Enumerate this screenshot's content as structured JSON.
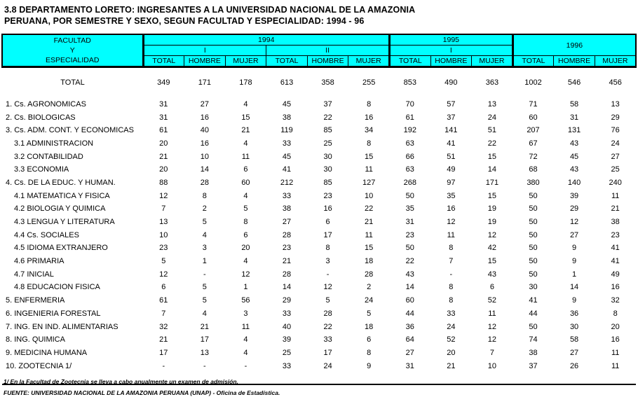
{
  "title": {
    "line1": "3.8  DEPARTAMENTO  LORETO: INGRESANTES A LA UNIVERSIDAD NACIONAL DE LA AMAZONIA",
    "line2": "PERUANA,  POR SEMESTRE Y SEXO, SEGUN FACULTAD Y ESPECIALIDAD: 1994 - 96"
  },
  "colors": {
    "header_bg": "#00FFFF",
    "border": "#000000",
    "text": "#000000"
  },
  "table": {
    "header": {
      "stub": [
        "FACULTAD",
        "Y",
        "ESPECIALIDAD"
      ],
      "year_groups": [
        {
          "year": "1994",
          "semesters": [
            "I",
            "II"
          ]
        },
        {
          "year": "1995",
          "semesters": [
            "I"
          ]
        },
        {
          "year": "1996",
          "semesters": [
            ""
          ]
        }
      ],
      "columns": [
        "TOTAL",
        "HOMBRE",
        "MUJER",
        "TOTAL",
        "HOMBRE",
        "MUJER",
        "TOTAL",
        "HOMBRE",
        "MUJER",
        "TOTAL",
        "HOMBRE",
        "MUJER"
      ]
    },
    "rows": [
      {
        "label": "TOTAL",
        "indent": "total",
        "values": [
          "349",
          "171",
          "178",
          "613",
          "358",
          "255",
          "853",
          "490",
          "363",
          "1002",
          "546",
          "456"
        ]
      },
      {
        "label": "1. Cs. AGRONOMICAS",
        "indent": "main",
        "values": [
          "31",
          "27",
          "4",
          "45",
          "37",
          "8",
          "70",
          "57",
          "13",
          "71",
          "58",
          "13"
        ]
      },
      {
        "label": "2. Cs. BIOLOGICAS",
        "indent": "main",
        "values": [
          "31",
          "16",
          "15",
          "38",
          "22",
          "16",
          "61",
          "37",
          "24",
          "60",
          "31",
          "29"
        ]
      },
      {
        "label": "3. Cs. ADM. CONT. Y ECONOMICAS",
        "indent": "main",
        "values": [
          "61",
          "40",
          "21",
          "119",
          "85",
          "34",
          "192",
          "141",
          "51",
          "207",
          "131",
          "76"
        ]
      },
      {
        "label": "3.1 ADMINISTRACION",
        "indent": "sub",
        "values": [
          "20",
          "16",
          "4",
          "33",
          "25",
          "8",
          "63",
          "41",
          "22",
          "67",
          "43",
          "24"
        ]
      },
      {
        "label": "3.2 CONTABILIDAD",
        "indent": "sub",
        "values": [
          "21",
          "10",
          "11",
          "45",
          "30",
          "15",
          "66",
          "51",
          "15",
          "72",
          "45",
          "27"
        ]
      },
      {
        "label": "3.3 ECONOMIA",
        "indent": "sub",
        "values": [
          "20",
          "14",
          "6",
          "41",
          "30",
          "11",
          "63",
          "49",
          "14",
          "68",
          "43",
          "25"
        ]
      },
      {
        "label": "4. Cs. DE LA EDUC. Y HUMAN.",
        "indent": "main",
        "values": [
          "88",
          "28",
          "60",
          "212",
          "85",
          "127",
          "268",
          "97",
          "171",
          "380",
          "140",
          "240"
        ]
      },
      {
        "label": "4.1 MATEMATICA Y FISICA",
        "indent": "sub",
        "values": [
          "12",
          "8",
          "4",
          "33",
          "23",
          "10",
          "50",
          "35",
          "15",
          "50",
          "39",
          "11"
        ]
      },
      {
        "label": "4.2 BIOLOGIA Y QUIMICA",
        "indent": "sub",
        "values": [
          "7",
          "2",
          "5",
          "38",
          "16",
          "22",
          "35",
          "16",
          "19",
          "50",
          "29",
          "21"
        ]
      },
      {
        "label": "4.3 LENGUA Y LITERATURA",
        "indent": "sub",
        "values": [
          "13",
          "5",
          "8",
          "27",
          "6",
          "21",
          "31",
          "12",
          "19",
          "50",
          "12",
          "38"
        ]
      },
      {
        "label": "4.4 Cs. SOCIALES",
        "indent": "sub",
        "values": [
          "10",
          "4",
          "6",
          "28",
          "17",
          "11",
          "23",
          "11",
          "12",
          "50",
          "27",
          "23"
        ]
      },
      {
        "label": "4.5 IDIOMA EXTRANJERO",
        "indent": "sub",
        "values": [
          "23",
          "3",
          "20",
          "23",
          "8",
          "15",
          "50",
          "8",
          "42",
          "50",
          "9",
          "41"
        ]
      },
      {
        "label": "4.6 PRIMARIA",
        "indent": "sub",
        "values": [
          "5",
          "1",
          "4",
          "21",
          "3",
          "18",
          "22",
          "7",
          "15",
          "50",
          "9",
          "41"
        ]
      },
      {
        "label": "4.7 INICIAL",
        "indent": "sub",
        "values": [
          "12",
          "-",
          "12",
          "28",
          "-",
          "28",
          "43",
          "-",
          "43",
          "50",
          "1",
          "49"
        ]
      },
      {
        "label": "4.8 EDUCACION FISICA",
        "indent": "sub",
        "values": [
          "6",
          "5",
          "1",
          "14",
          "12",
          "2",
          "14",
          "8",
          "6",
          "30",
          "14",
          "16"
        ]
      },
      {
        "label": "5. ENFERMERIA",
        "indent": "main",
        "values": [
          "61",
          "5",
          "56",
          "29",
          "5",
          "24",
          "60",
          "8",
          "52",
          "41",
          "9",
          "32"
        ]
      },
      {
        "label": "6. INGENIERIA FORESTAL",
        "indent": "main",
        "values": [
          "7",
          "4",
          "3",
          "33",
          "28",
          "5",
          "44",
          "33",
          "11",
          "44",
          "36",
          "8"
        ]
      },
      {
        "label": "7. ING. EN IND. ALIMENTARIAS",
        "indent": "main",
        "values": [
          "32",
          "21",
          "11",
          "40",
          "22",
          "18",
          "36",
          "24",
          "12",
          "50",
          "30",
          "20"
        ]
      },
      {
        "label": "8. ING. QUIMICA",
        "indent": "main",
        "values": [
          "21",
          "17",
          "4",
          "39",
          "33",
          "6",
          "64",
          "52",
          "12",
          "74",
          "58",
          "16"
        ]
      },
      {
        "label": "9. MEDICINA HUMANA",
        "indent": "main",
        "values": [
          "17",
          "13",
          "4",
          "25",
          "17",
          "8",
          "27",
          "20",
          "7",
          "38",
          "27",
          "11"
        ]
      },
      {
        "label": "10. ZOOTECNIA  1/",
        "indent": "main",
        "values": [
          "-",
          "-",
          "-",
          "33",
          "24",
          "9",
          "31",
          "21",
          "10",
          "37",
          "26",
          "11"
        ]
      }
    ]
  },
  "footnotes": {
    "note1": "1/  En la Facultad de Zootecnia se lleva a cabo anualmente un examen de admisión.",
    "source": "FUENTE: UNIVERSIDAD NACIONAL DE LA AMAZONIA PERUANA (UNAP) - Oficina de Estadística."
  }
}
